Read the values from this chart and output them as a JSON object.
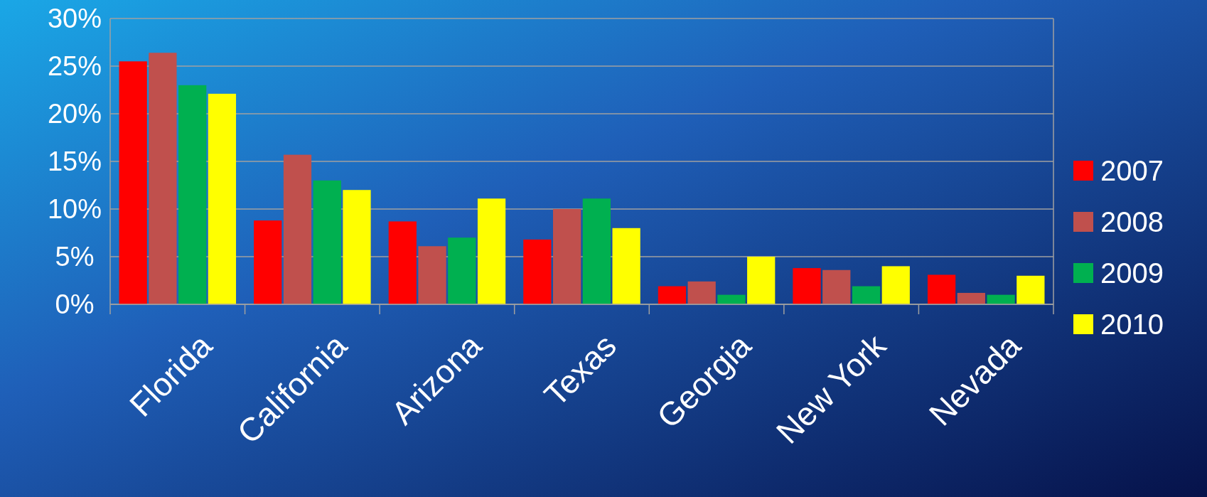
{
  "chart_data": {
    "type": "bar",
    "categories": [
      "Florida",
      "California",
      "Arizona",
      "Texas",
      "Georgia",
      "New York",
      "Nevada"
    ],
    "series": [
      {
        "name": "2007",
        "color": "#ff0000",
        "values": [
          25.5,
          8.8,
          8.7,
          6.8,
          1.9,
          3.8,
          3.1
        ]
      },
      {
        "name": "2008",
        "color": "#c0504d",
        "values": [
          26.4,
          15.7,
          6.1,
          10.0,
          2.4,
          3.6,
          1.2
        ]
      },
      {
        "name": "2009",
        "color": "#00b050",
        "values": [
          23.0,
          13.0,
          7.0,
          11.1,
          1.0,
          1.9,
          1.0
        ]
      },
      {
        "name": "2010",
        "color": "#ffff00",
        "values": [
          22.1,
          12.0,
          11.1,
          8.0,
          5.0,
          4.0,
          3.0
        ]
      }
    ],
    "ylim": [
      0,
      30
    ],
    "yticks": [
      {
        "value": 0,
        "label": "0%"
      },
      {
        "value": 5,
        "label": "5%"
      },
      {
        "value": 10,
        "label": "10%"
      },
      {
        "value": 15,
        "label": "15%"
      },
      {
        "value": 20,
        "label": "20%"
      },
      {
        "value": 25,
        "label": "25%"
      },
      {
        "value": 30,
        "label": "30%"
      }
    ],
    "grid": "y",
    "legend": "right"
  }
}
